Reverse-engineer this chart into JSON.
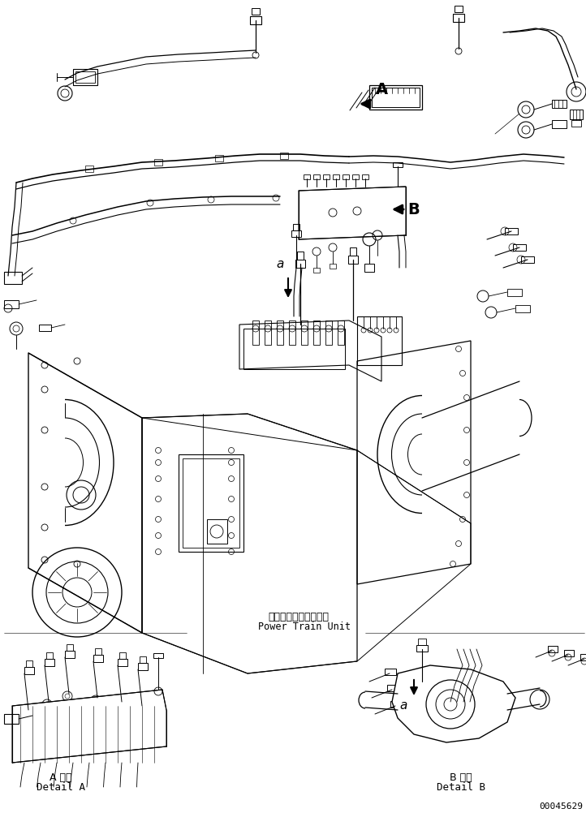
{
  "bg_color": "#ffffff",
  "line_color": "#000000",
  "fig_width": 7.22,
  "fig_height": 10.02,
  "dpi": 100,
  "label_A": "A",
  "label_B": "B",
  "label_a_main": "a",
  "label_a_detB": "a",
  "label_power_train_jp": "パワートレンユニット",
  "label_power_train_en": "Power Train Unit",
  "label_detail_A_jp": "A 詳細",
  "label_detail_A_en": "Detail A",
  "label_detail_B_jp": "B 詳細",
  "label_detail_B_en": "Detail B",
  "part_number": "00045629",
  "font_size_labels": 13,
  "font_size_detail": 9,
  "font_size_part": 8
}
